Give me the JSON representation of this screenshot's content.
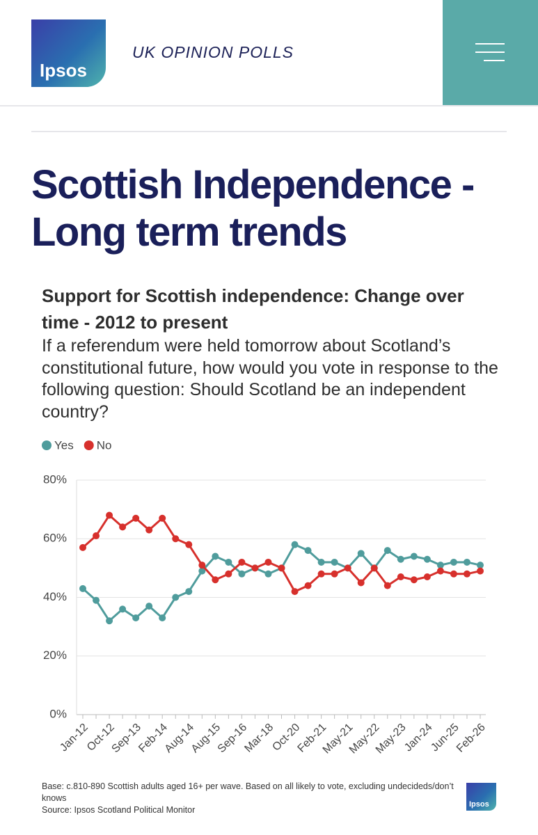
{
  "header": {
    "logo": "Ipsos",
    "section": "UK OPINION POLLS"
  },
  "page_title": "Scottish Independence - Long term trends",
  "chart_data": {
    "type": "line",
    "title": "Support for Scottish independence: Change over time - 2012 to present",
    "subtitle": "If a referendum were held tomorrow about Scotland’s constitutional future, how would you vote in response to the following question: Should Scotland be an independent country?",
    "categories": [
      "Jan-12",
      null,
      "Oct-12",
      null,
      "Sep-13",
      null,
      "Feb-14",
      null,
      "Aug-14",
      null,
      "Aug-15",
      null,
      "Sep-16",
      null,
      "Mar-18",
      null,
      "Oct-20",
      null,
      "Feb-21",
      null,
      "May-21",
      null,
      "May-22",
      null,
      "May-23",
      null,
      "Jan-24",
      null,
      "Jun-25",
      null,
      "Feb-26"
    ],
    "series": [
      {
        "name": "Yes",
        "color": "#4f9c9c",
        "values": [
          43,
          39,
          32,
          36,
          33,
          37,
          33,
          40,
          42,
          49,
          54,
          52,
          48,
          50,
          48,
          50,
          58,
          56,
          52,
          52,
          50,
          55,
          50,
          56,
          53,
          54,
          53,
          51,
          52,
          52,
          51
        ]
      },
      {
        "name": "No",
        "color": "#d7302c",
        "values": [
          57,
          61,
          68,
          64,
          67,
          63,
          67,
          60,
          58,
          51,
          46,
          48,
          52,
          50,
          52,
          50,
          42,
          44,
          48,
          48,
          50,
          45,
          50,
          44,
          47,
          46,
          47,
          49,
          48,
          48,
          49
        ]
      }
    ],
    "ylim": [
      0,
      80
    ],
    "yticks": [
      {
        "value": 0,
        "label": "0%"
      },
      {
        "value": 20,
        "label": "20%"
      },
      {
        "value": 40,
        "label": "40%"
      },
      {
        "value": 60,
        "label": "60%"
      },
      {
        "value": 80,
        "label": "80%"
      }
    ],
    "grid": true,
    "legend": "top-left",
    "note": "Base: c.810-890 Scottish adults aged 16+ per wave. Based on all likely to vote, excluding undecideds/don’t knows",
    "source": "Source: Ipsos Scotland Political Monitor"
  }
}
